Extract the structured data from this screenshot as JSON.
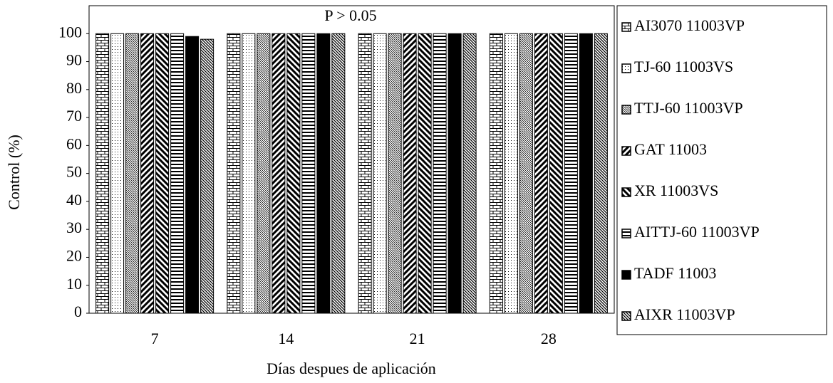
{
  "chart_data": {
    "type": "bar",
    "annotation": "P > 0.05",
    "x_label": "Días despues de aplicación",
    "y_label": "Control (%)",
    "categories": [
      "7",
      "14",
      "21",
      "28"
    ],
    "ylim": [
      0,
      110
    ],
    "yticks": [
      0,
      10,
      20,
      30,
      40,
      50,
      60,
      70,
      80,
      90,
      100
    ],
    "legend": "right",
    "series": [
      {
        "name": "AI3070 11003VP",
        "color": "#000000",
        "pattern": "brick",
        "values": [
          100,
          100,
          100,
          100
        ]
      },
      {
        "name": "TJ-60 11003VS",
        "color": "#000000",
        "pattern": "dots",
        "values": [
          100,
          100,
          100,
          100
        ]
      },
      {
        "name": "TTJ-60 11003VP",
        "color": "#000000",
        "pattern": "fine-diagonal",
        "values": [
          100,
          100,
          100,
          100
        ]
      },
      {
        "name": "GAT 11003",
        "color": "#000000",
        "pattern": "wide-up-diagonal",
        "values": [
          100,
          100,
          100,
          100
        ]
      },
      {
        "name": "XR 11003VS",
        "color": "#000000",
        "pattern": "wide-down-diagonal",
        "values": [
          100,
          100,
          100,
          100
        ]
      },
      {
        "name": "AITTJ-60 11003VP",
        "color": "#000000",
        "pattern": "horizontal",
        "values": [
          100,
          100,
          100,
          100
        ]
      },
      {
        "name": "TADF 11003",
        "color": "#000000",
        "pattern": "solid",
        "values": [
          99,
          100,
          100,
          100
        ]
      },
      {
        "name": "AIXR 11003VP",
        "color": "#000000",
        "pattern": "down-diagonal",
        "values": [
          98,
          100,
          100,
          100
        ]
      }
    ]
  }
}
